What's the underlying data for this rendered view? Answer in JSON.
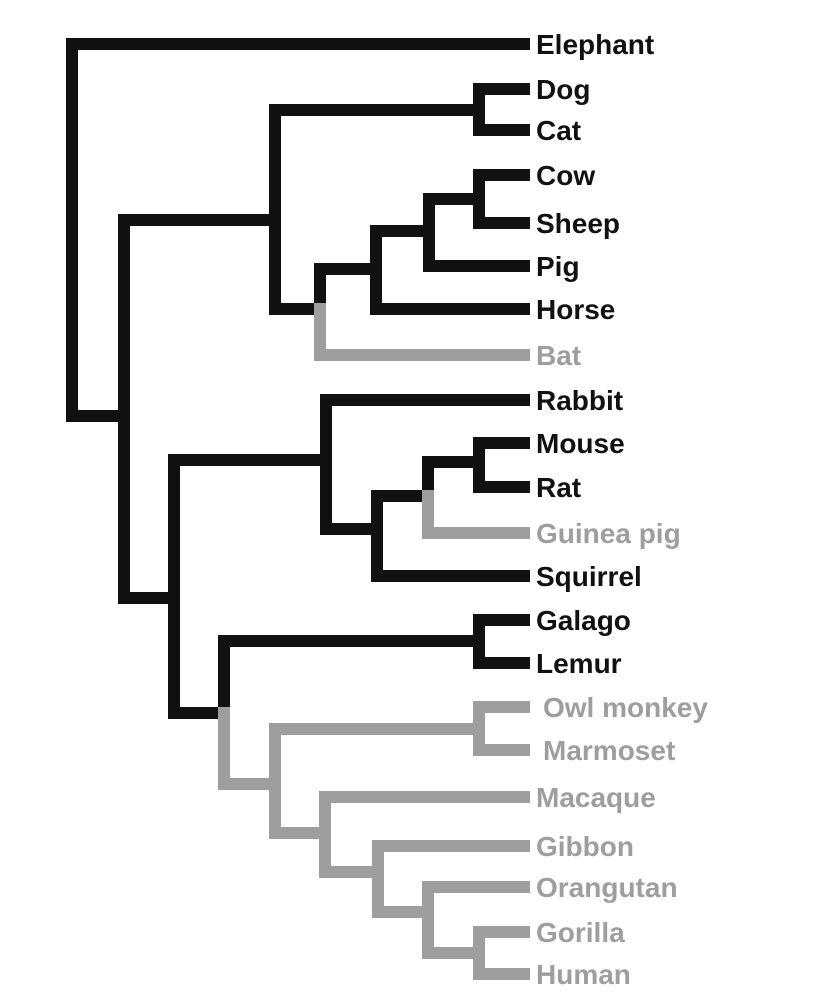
{
  "colors": {
    "primary": "#111111",
    "highlight": "#9e9e9e"
  },
  "species": {
    "elephant": "Elephant",
    "dog": "Dog",
    "cat": "Cat",
    "cow": "Cow",
    "sheep": "Sheep",
    "pig": "Pig",
    "horse": "Horse",
    "bat": "Bat",
    "rabbit": "Rabbit",
    "mouse": "Mouse",
    "rat": "Rat",
    "guinea_pig": "Guinea pig",
    "squirrel": "Squirrel",
    "galago": "Galago",
    "lemur": "Lemur",
    "owl_monkey": "Owl monkey",
    "marmoset": "Marmoset",
    "macaque": "Macaque",
    "gibbon": "Gibbon",
    "orangutan": "Orangutan",
    "gorilla": "Gorilla",
    "human": "Human"
  },
  "highlighted": [
    "bat",
    "guinea_pig",
    "owl_monkey",
    "marmoset",
    "macaque",
    "gibbon",
    "orangutan",
    "gorilla",
    "human"
  ]
}
